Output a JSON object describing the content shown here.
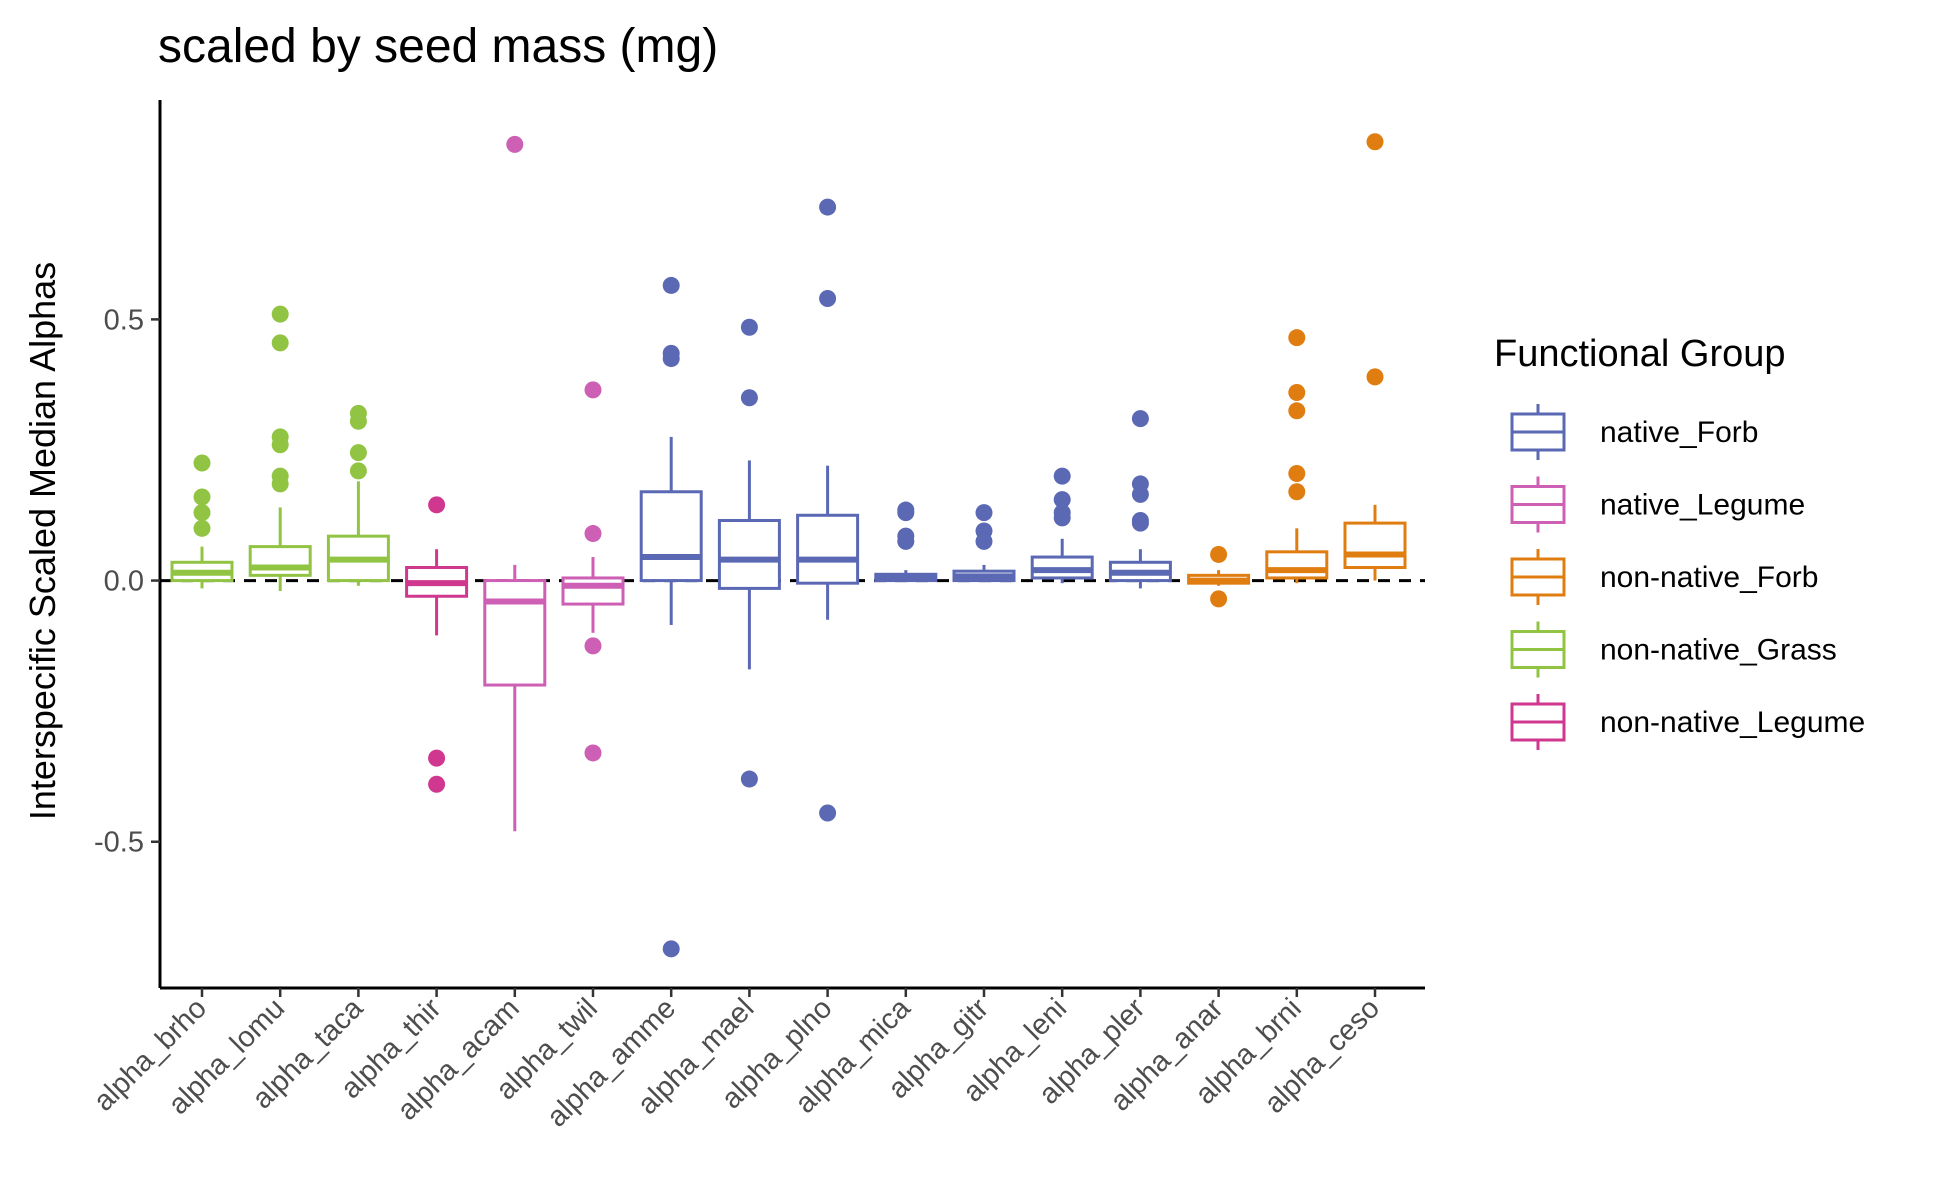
{
  "chart_data": {
    "type": "boxplot",
    "title": "scaled by seed mass (mg)",
    "xlabel": "",
    "ylabel": "Interspecific Scaled Median Alphas",
    "ylim": [
      -0.78,
      0.92
    ],
    "yticks": [
      -0.5,
      0.0,
      0.5
    ],
    "ytick_labels": [
      "-0.5",
      "0.0",
      "0.5"
    ],
    "reference_line": {
      "y": 0,
      "style": "dashed"
    },
    "grid": false,
    "legend": {
      "title": "Functional Group",
      "placement": "right",
      "entries": [
        {
          "name": "native_Forb",
          "color": "#5b68b4"
        },
        {
          "name": "native_Legume",
          "color": "#cd5fb4"
        },
        {
          "name": "non-native_Forb",
          "color": "#e07d10"
        },
        {
          "name": "non-native_Grass",
          "color": "#92c443"
        },
        {
          "name": "non-native_Legume",
          "color": "#d0378e"
        }
      ]
    },
    "categories": [
      "alpha_brho",
      "alpha_lomu",
      "alpha_taca",
      "alpha_thir",
      "alpha_acam",
      "alpha_twil",
      "alpha_amme",
      "alpha_mael",
      "alpha_plno",
      "alpha_mica",
      "alpha_gitr",
      "alpha_leni",
      "alpha_pler",
      "alpha_anar",
      "alpha_brni",
      "alpha_ceso"
    ],
    "boxes": [
      {
        "category": "alpha_brho",
        "group": "non-native_Grass",
        "whisker_low": -0.015,
        "q1": 0.0,
        "median": 0.015,
        "q3": 0.035,
        "whisker_high": 0.065,
        "outliers": [
          0.225,
          0.16,
          0.13,
          0.1
        ]
      },
      {
        "category": "alpha_lomu",
        "group": "non-native_Grass",
        "whisker_low": -0.02,
        "q1": 0.01,
        "median": 0.025,
        "q3": 0.065,
        "whisker_high": 0.14,
        "outliers": [
          0.51,
          0.455,
          0.275,
          0.26,
          0.2,
          0.185
        ]
      },
      {
        "category": "alpha_taca",
        "group": "non-native_Grass",
        "whisker_low": -0.01,
        "q1": 0.0,
        "median": 0.04,
        "q3": 0.085,
        "whisker_high": 0.19,
        "outliers": [
          0.32,
          0.305,
          0.245,
          0.21
        ]
      },
      {
        "category": "alpha_thir",
        "group": "non-native_Legume",
        "whisker_low": -0.105,
        "q1": -0.03,
        "median": -0.005,
        "q3": 0.025,
        "whisker_high": 0.06,
        "outliers": [
          0.145,
          -0.34,
          -0.39
        ]
      },
      {
        "category": "alpha_acam",
        "group": "native_Legume",
        "whisker_low": -0.48,
        "q1": -0.2,
        "median": -0.04,
        "q3": 0.0,
        "whisker_high": 0.03,
        "outliers": [
          0.835
        ]
      },
      {
        "category": "alpha_twil",
        "group": "native_Legume",
        "whisker_low": -0.1,
        "q1": -0.045,
        "median": -0.01,
        "q3": 0.005,
        "whisker_high": 0.045,
        "outliers": [
          0.365,
          0.09,
          -0.125,
          -0.33
        ]
      },
      {
        "category": "alpha_amme",
        "group": "native_Forb",
        "whisker_low": -0.085,
        "q1": 0.0,
        "median": 0.045,
        "q3": 0.17,
        "whisker_high": 0.275,
        "outliers": [
          0.565,
          0.435,
          0.425,
          -0.705
        ]
      },
      {
        "category": "alpha_mael",
        "group": "native_Forb",
        "whisker_low": -0.17,
        "q1": -0.015,
        "median": 0.04,
        "q3": 0.115,
        "whisker_high": 0.23,
        "outliers": [
          0.485,
          0.35,
          -0.38
        ]
      },
      {
        "category": "alpha_plno",
        "group": "native_Forb",
        "whisker_low": -0.075,
        "q1": -0.005,
        "median": 0.04,
        "q3": 0.125,
        "whisker_high": 0.22,
        "outliers": [
          0.715,
          0.54,
          -0.445
        ]
      },
      {
        "category": "alpha_mica",
        "group": "native_Forb",
        "whisker_low": 0.0,
        "q1": 0.0,
        "median": 0.005,
        "q3": 0.012,
        "whisker_high": 0.02,
        "outliers": [
          0.135,
          0.13,
          0.085,
          0.075
        ]
      },
      {
        "category": "alpha_gitr",
        "group": "native_Forb",
        "whisker_low": 0.0,
        "q1": 0.0,
        "median": 0.008,
        "q3": 0.018,
        "whisker_high": 0.03,
        "outliers": [
          0.13,
          0.095,
          0.075
        ]
      },
      {
        "category": "alpha_leni",
        "group": "native_Forb",
        "whisker_low": -0.005,
        "q1": 0.005,
        "median": 0.02,
        "q3": 0.045,
        "whisker_high": 0.08,
        "outliers": [
          0.2,
          0.155,
          0.13,
          0.12
        ]
      },
      {
        "category": "alpha_pler",
        "group": "native_Forb",
        "whisker_low": -0.015,
        "q1": 0.0,
        "median": 0.015,
        "q3": 0.035,
        "whisker_high": 0.06,
        "outliers": [
          0.31,
          0.185,
          0.165,
          0.115,
          0.11
        ]
      },
      {
        "category": "alpha_anar",
        "group": "non-native_Forb",
        "whisker_low": -0.01,
        "q1": -0.005,
        "median": 0.0,
        "q3": 0.01,
        "whisker_high": 0.02,
        "outliers": [
          0.05,
          -0.035
        ]
      },
      {
        "category": "alpha_brni",
        "group": "non-native_Forb",
        "whisker_low": -0.005,
        "q1": 0.005,
        "median": 0.02,
        "q3": 0.055,
        "whisker_high": 0.1,
        "outliers": [
          0.465,
          0.36,
          0.325,
          0.205,
          0.17
        ]
      },
      {
        "category": "alpha_ceso",
        "group": "non-native_Forb",
        "whisker_low": 0.0,
        "q1": 0.025,
        "median": 0.05,
        "q3": 0.11,
        "whisker_high": 0.145,
        "outliers": [
          0.84,
          0.39
        ]
      }
    ]
  }
}
